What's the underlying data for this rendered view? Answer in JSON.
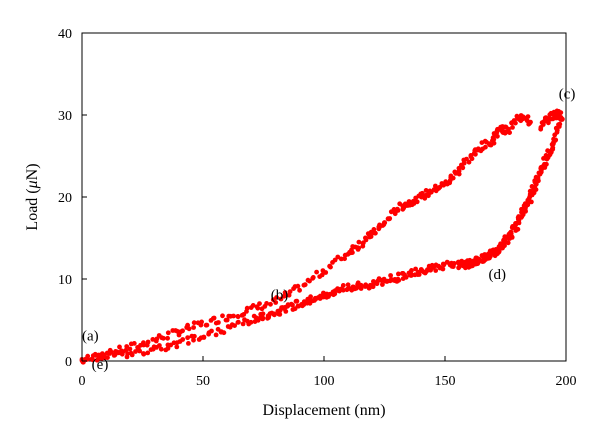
{
  "chart_data": {
    "type": "scatter",
    "title": "",
    "xlabel": "Displacement (nm)",
    "ylabel_prefix": "Load (",
    "ylabel_mu": "μ",
    "ylabel_suffix": "N)",
    "xlim": [
      0,
      200
    ],
    "ylim": [
      0,
      40
    ],
    "xticks": [
      0,
      50,
      100,
      150,
      200
    ],
    "yticks": [
      0,
      10,
      20,
      30,
      40
    ],
    "grid": false,
    "marker_color": "#ff0000",
    "annotations": [
      {
        "text": "(a)",
        "x": 0,
        "y": 2.5
      },
      {
        "text": "(b)",
        "x": 78,
        "y": 7.5
      },
      {
        "text": "(c)",
        "x": 197,
        "y": 32
      },
      {
        "text": "(d)",
        "x": 168,
        "y": 10
      },
      {
        "text": "(e)",
        "x": 4,
        "y": -1
      }
    ],
    "series": [
      {
        "x": [
          0,
          10,
          20,
          30,
          40,
          50,
          60,
          70,
          80,
          90,
          100,
          110,
          115,
          120,
          125,
          130,
          135,
          140,
          145,
          150,
          155,
          160,
          165,
          170,
          173,
          175,
          180,
          182,
          185
        ],
        "y": [
          0,
          0.8,
          1.6,
          2.6,
          3.6,
          4.5,
          5.4,
          6.3,
          7.2,
          9.0,
          11.0,
          13.2,
          14.3,
          15.5,
          16.8,
          18.5,
          19.3,
          20.0,
          20.8,
          21.5,
          23.0,
          24.8,
          26.0,
          27.0,
          28.5,
          28.0,
          29.5,
          30.0,
          29.0
        ]
      },
      {
        "x": [
          190,
          192,
          195,
          197,
          198,
          196,
          194,
          192,
          190,
          188,
          186,
          184,
          182,
          180,
          178,
          176,
          174,
          172,
          170,
          168,
          166,
          164,
          162,
          160,
          158,
          155,
          150,
          145,
          140,
          135,
          130,
          125,
          120,
          115,
          110,
          105,
          100,
          95,
          90,
          85,
          80,
          75,
          70,
          60,
          50,
          40,
          30,
          20,
          10,
          0
        ],
        "y": [
          28.5,
          29.5,
          30.0,
          30.2,
          29.8,
          27.5,
          26.0,
          24.8,
          23.5,
          22.0,
          20.5,
          19.2,
          18.0,
          16.8,
          15.8,
          15.0,
          14.2,
          13.6,
          13.2,
          12.9,
          12.6,
          12.3,
          12.0,
          11.9,
          11.8,
          11.8,
          11.6,
          11.3,
          11.0,
          10.6,
          10.2,
          9.8,
          9.4,
          9.2,
          8.9,
          8.5,
          8.0,
          7.5,
          7.0,
          6.5,
          6.0,
          5.5,
          5.0,
          4.0,
          3.0,
          2.2,
          1.5,
          1.0,
          0.6,
          0.2
        ]
      }
    ]
  }
}
